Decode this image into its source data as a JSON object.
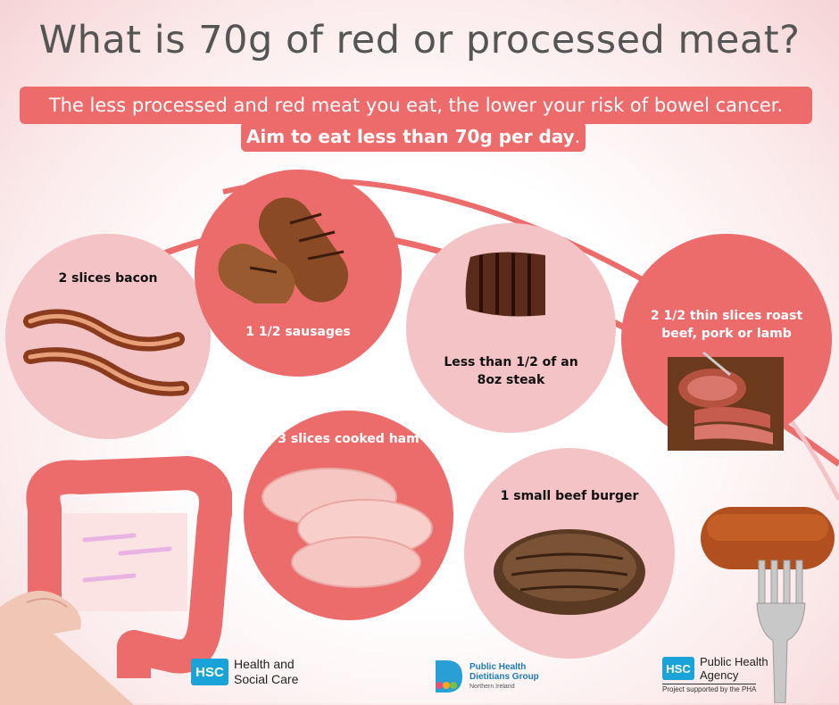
{
  "title": "What is 70g of red or processed meat?",
  "banner": {
    "line1": "The less processed and red meat you eat, the lower your risk of bowel cancer.",
    "line2": "Aim to eat less than 70g per day",
    "line2_end": "."
  },
  "items": {
    "bacon": "2 slices bacon",
    "sausages": "1 1/2 sausages",
    "steak_line1": "Less than 1/2 of an",
    "steak_line2": "8oz steak",
    "roast_line1": "2 1/2 thin slices roast",
    "roast_line2": "beef, pork or lamb",
    "ham": "3 slices cooked ham",
    "burger": "1 small beef burger"
  },
  "logos": {
    "hsc_badge": "HSC",
    "hsc_line1": "Health and",
    "hsc_line2": "Social Care",
    "phdg_line1": "Public Health",
    "phdg_line2": "Dietitians Group",
    "phdg_line3": "Northern Ireland",
    "pha_badge": "HSC",
    "pha_line1": "Public Health",
    "pha_line2": "Agency",
    "pha_line3": "Project supported by the PHA"
  },
  "colors": {
    "accent": "#ee6b6b",
    "light_circle": "#f4c3c5",
    "dark_circle": "#ec6c6c",
    "title_text": "#555555",
    "hsc_blue": "#1aa3d9"
  }
}
